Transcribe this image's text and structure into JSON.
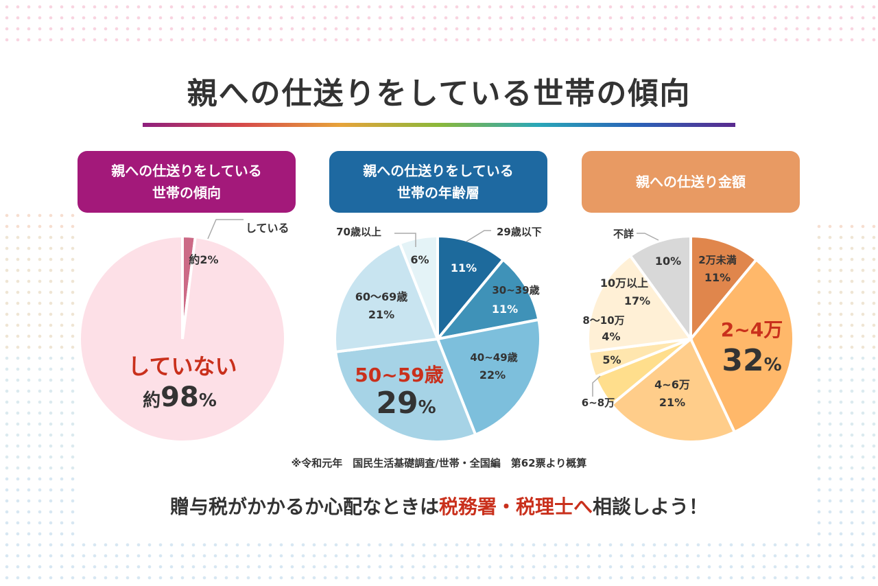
{
  "title": "親への仕送りをしている世帯の傾向",
  "panels": [
    {
      "line1": "親への仕送りをしている",
      "line2": "世帯の傾向"
    },
    {
      "line1": "親への仕送りをしている",
      "line2": "世帯の年齢層"
    },
    {
      "line1": "親への仕送り金額",
      "line2": ""
    }
  ],
  "chart_data": [
    {
      "type": "pie",
      "title": "親への仕送りをしている世帯の傾向",
      "categories": [
        "している",
        "していない"
      ],
      "values": [
        2,
        98
      ],
      "value_labels": [
        "約2%",
        "約98%"
      ],
      "colors": [
        "#cc6a86",
        "#fde0e7"
      ]
    },
    {
      "type": "pie",
      "title": "親への仕送りをしている世帯の年齢層",
      "categories": [
        "29歳以下",
        "30~39歳",
        "40~49歳",
        "50~59歳",
        "60～69歳",
        "70歳以上"
      ],
      "values": [
        11,
        11,
        22,
        29,
        21,
        6
      ],
      "colors": [
        "#1d6a9c",
        "#3f92b8",
        "#7dbfdc",
        "#a6d3e6",
        "#c8e4f0",
        "#e4f3f7"
      ]
    },
    {
      "type": "pie",
      "title": "親への仕送り金額",
      "categories": [
        "2万未満",
        "2~4万",
        "4~6万",
        "6~8万",
        "8～10万",
        "10万以上",
        "不詳"
      ],
      "values": [
        11,
        32,
        21,
        5,
        4,
        17,
        10
      ],
      "colors": [
        "#e0864c",
        "#ffb86a",
        "#ffcd8a",
        "#ffde8c",
        "#ffe6ae",
        "#fff0d6",
        "#d8d8d8"
      ]
    }
  ],
  "labels": {
    "c1_small_cat": "している",
    "c1_small_val": "約2%",
    "c1_big_cat": "していない",
    "c1_big_prefix": "約",
    "c1_big_num": "98",
    "c1_big_pct": "%",
    "c2": [
      {
        "cat": "29歳以下",
        "val": "11%"
      },
      {
        "cat": "30~39歳",
        "val": "11%"
      },
      {
        "cat": "40~49歳",
        "val": "22%"
      },
      {
        "cat": "50~59歳",
        "num": "29",
        "pct": "%"
      },
      {
        "cat": "60～69歳",
        "val": "21%"
      },
      {
        "cat": "70歳以上",
        "val": "6%"
      }
    ],
    "c3": [
      {
        "cat": "2万未満",
        "val": "11%"
      },
      {
        "cat": "2~4万",
        "num": "32",
        "pct": "%"
      },
      {
        "cat": "4~6万",
        "val": "21%"
      },
      {
        "cat": "6~8万",
        "val": "5%"
      },
      {
        "cat": "8～10万",
        "val": "4%"
      },
      {
        "cat": "10万以上",
        "val": "17%"
      },
      {
        "cat": "不詳",
        "val": "10%"
      }
    ]
  },
  "note": "※令和元年　国民生活基礎調査/世帯・全国編　第62票より概算",
  "cta": {
    "pre": "贈与税がかかるか心配なときは",
    "highlight": "税務署・税理士へ",
    "post": "相談しよう！"
  }
}
